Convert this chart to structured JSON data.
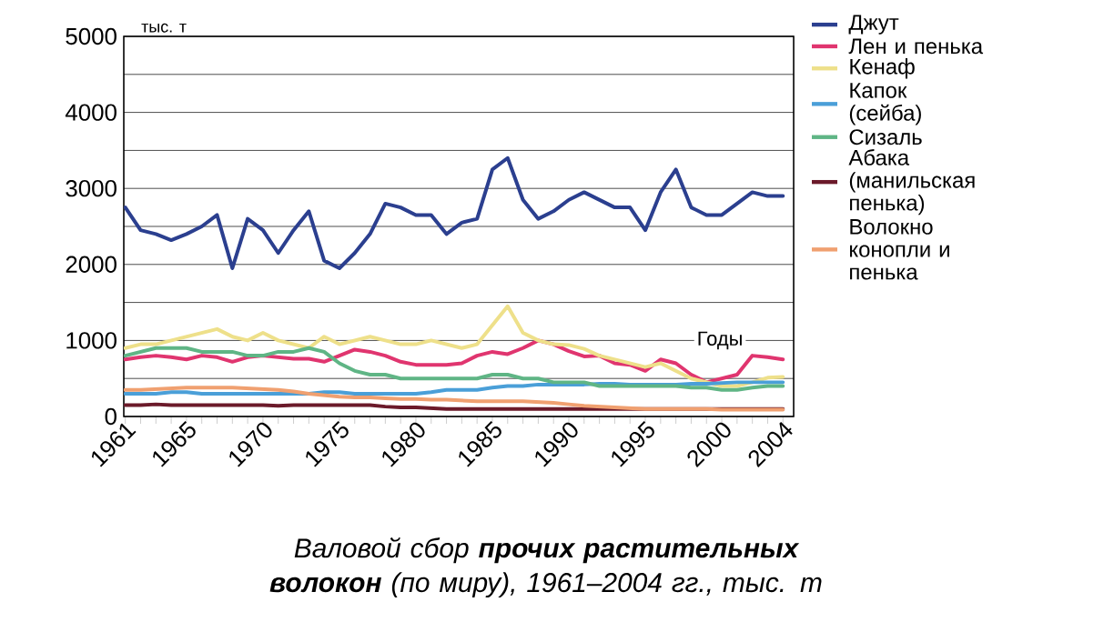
{
  "chart_data": {
    "type": "line",
    "title": "Валовой сбор **прочих растительных волокон** (по миру), 1961–2004 гг., тыс. т",
    "xlabel": "Годы",
    "ylabel": "тыс. т",
    "x": [
      1961,
      1962,
      1963,
      1964,
      1965,
      1966,
      1967,
      1968,
      1969,
      1970,
      1971,
      1972,
      1973,
      1974,
      1975,
      1976,
      1977,
      1978,
      1979,
      1980,
      1981,
      1982,
      1983,
      1984,
      1985,
      1986,
      1987,
      1988,
      1989,
      1990,
      1991,
      1992,
      1993,
      1994,
      1995,
      1996,
      1997,
      1998,
      1999,
      2000,
      2001,
      2002,
      2003,
      2004
    ],
    "series": [
      {
        "name": "Джут",
        "color": "#2b3f8f",
        "values": [
          2750,
          2450,
          2400,
          2320,
          2400,
          2500,
          2650,
          1950,
          2600,
          2450,
          2150,
          2450,
          2700,
          2050,
          1950,
          2150,
          2400,
          2800,
          2750,
          2650,
          2650,
          2400,
          2550,
          2600,
          3250,
          3400,
          2850,
          2600,
          2700,
          2850,
          2950,
          2850,
          2750,
          2750,
          2450,
          2950,
          3250,
          2750,
          2650,
          2650,
          2800,
          2950,
          2900,
          2900
        ]
      },
      {
        "name": "Лен и пенька",
        "color": "#e0356f",
        "values": [
          750,
          780,
          800,
          780,
          750,
          800,
          780,
          720,
          780,
          800,
          780,
          760,
          760,
          720,
          800,
          880,
          850,
          800,
          720,
          680,
          680,
          680,
          700,
          800,
          850,
          820,
          900,
          1000,
          950,
          860,
          790,
          800,
          700,
          680,
          600,
          750,
          700,
          550,
          450,
          500,
          550,
          800,
          780,
          750
        ]
      },
      {
        "name": "Кенаф",
        "color": "#eee08a",
        "values": [
          900,
          950,
          950,
          1000,
          1050,
          1100,
          1150,
          1050,
          1000,
          1100,
          1000,
          950,
          900,
          1050,
          950,
          1000,
          1050,
          1000,
          950,
          950,
          1000,
          950,
          900,
          950,
          1200,
          1450,
          1100,
          1000,
          950,
          940,
          890,
          800,
          750,
          700,
          650,
          700,
          600,
          500,
          450,
          400,
          400,
          450,
          510,
          520
        ]
      },
      {
        "name": "Капок (сейба)",
        "color": "#4a9fd8",
        "values": [
          300,
          300,
          300,
          320,
          320,
          300,
          300,
          300,
          300,
          300,
          300,
          300,
          300,
          320,
          320,
          300,
          300,
          300,
          300,
          300,
          320,
          350,
          350,
          350,
          380,
          400,
          400,
          420,
          420,
          420,
          420,
          430,
          430,
          420,
          420,
          420,
          420,
          430,
          430,
          440,
          450,
          450,
          450,
          450
        ]
      },
      {
        "name": "Сизаль",
        "color": "#5fb585",
        "values": [
          800,
          850,
          900,
          900,
          900,
          850,
          850,
          850,
          800,
          800,
          850,
          850,
          900,
          850,
          700,
          600,
          550,
          550,
          500,
          500,
          500,
          500,
          500,
          500,
          550,
          550,
          500,
          500,
          450,
          450,
          450,
          400,
          400,
          400,
          400,
          400,
          400,
          380,
          380,
          350,
          350,
          380,
          400,
          400
        ]
      },
      {
        "name": "Абака (манильская пенька)",
        "color": "#6b1a2a",
        "values": [
          150,
          150,
          160,
          150,
          150,
          150,
          150,
          150,
          150,
          150,
          140,
          150,
          150,
          150,
          150,
          150,
          150,
          130,
          120,
          120,
          110,
          100,
          100,
          100,
          100,
          100,
          100,
          100,
          100,
          100,
          100,
          100,
          100,
          100,
          100,
          100,
          100,
          100,
          100,
          100,
          100,
          100,
          100,
          100
        ]
      },
      {
        "name": "Волокно конопли и пенька",
        "color": "#f0a070",
        "values": [
          350,
          350,
          360,
          370,
          380,
          380,
          380,
          380,
          370,
          360,
          350,
          330,
          300,
          280,
          260,
          250,
          250,
          240,
          230,
          230,
          220,
          220,
          210,
          200,
          200,
          200,
          200,
          190,
          180,
          160,
          140,
          130,
          120,
          110,
          100,
          100,
          100,
          100,
          100,
          90,
          90,
          90,
          90,
          90
        ]
      }
    ],
    "xlim": [
      1960.9,
      2004.7
    ],
    "xticks": [
      1961,
      1965,
      1970,
      1975,
      1980,
      1985,
      1990,
      1995,
      2000,
      2004
    ],
    "ylim": [
      0,
      5000
    ],
    "yticks": [
      0,
      {
        "value": 500,
        "label": null
      },
      1000,
      {
        "value": 1500,
        "label": null
      },
      2000,
      {
        "value": 2500,
        "label": null
      },
      3000,
      {
        "value": 3500,
        "label": null
      },
      4000,
      {
        "value": 4500,
        "label": null
      },
      5000
    ],
    "grid": "y",
    "legend": "right",
    "marker": "none",
    "line_style": "solid"
  }
}
